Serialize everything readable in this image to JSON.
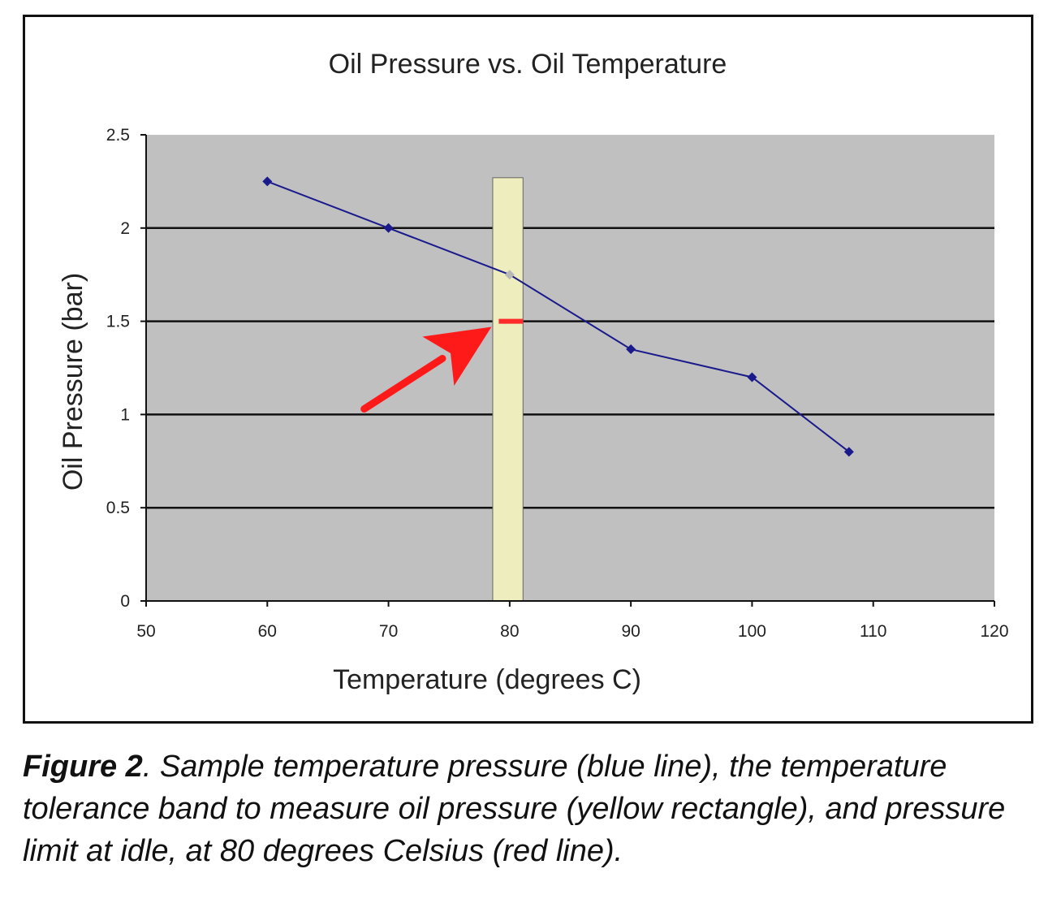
{
  "chart_data": {
    "type": "line",
    "title": "Oil Pressure vs. Oil Temperature",
    "xlabel": "Temperature (degrees C)",
    "ylabel": "Oil Pressure (bar)",
    "xlim": [
      50,
      120
    ],
    "ylim": [
      0,
      2.5
    ],
    "x_ticks": [
      50,
      60,
      70,
      80,
      90,
      100,
      110,
      120
    ],
    "y_ticks": [
      0,
      0.5,
      1,
      1.5,
      2,
      2.5
    ],
    "y_tick_labels": [
      "0",
      "0.5",
      "1",
      "1.5",
      "2",
      "2.5"
    ],
    "grid": "horizontal",
    "series": [
      {
        "name": "Sample temperature pressure",
        "color": "#1a1a8c",
        "x": [
          60,
          70,
          80,
          90,
          100,
          108
        ],
        "y": [
          2.25,
          2.0,
          1.75,
          1.35,
          1.2,
          0.8
        ]
      }
    ],
    "tolerance_band": {
      "x_range": [
        78.6,
        81.1
      ],
      "y_top": 2.27,
      "color": "#ededbe"
    },
    "pressure_limit": {
      "x_range": [
        79.1,
        81.1
      ],
      "y": 1.5,
      "color": "#ff2a2a"
    },
    "arrow": {
      "from": [
        68,
        1.03
      ],
      "to": [
        78.5,
        1.47
      ],
      "color": "#ff1a1a"
    },
    "plot_background": "#c0c0c0"
  },
  "caption": {
    "figure_label": "Figure 2",
    "text": ". Sample temperature pressure (blue line), the temperature tolerance band to measure oil pressure (yellow rectangle), and pressure limit at idle, at 80 degrees Celsius (red line)."
  }
}
